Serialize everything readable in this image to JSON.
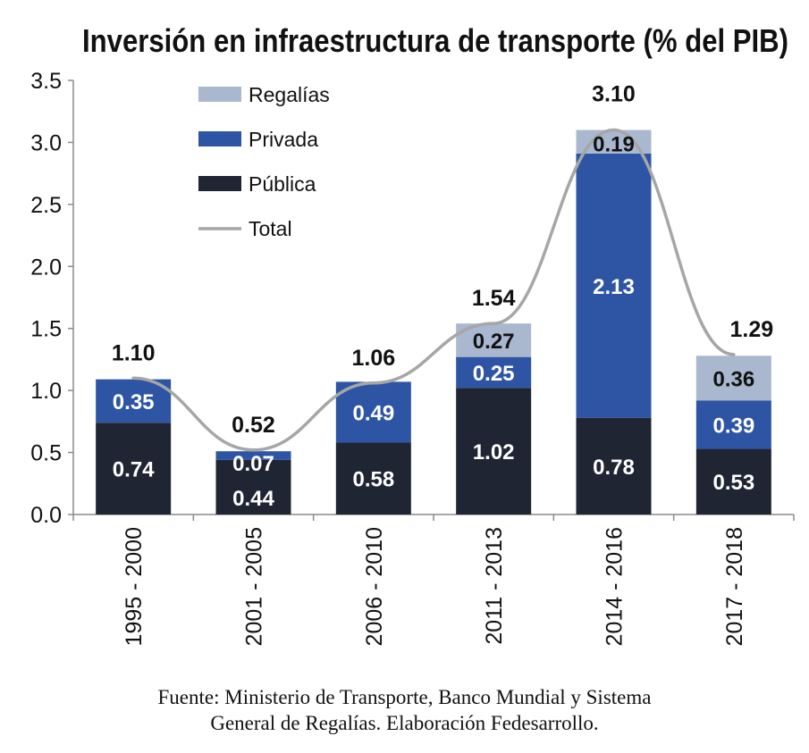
{
  "chart_data": {
    "type": "bar",
    "stacked": true,
    "title": "Inversión en infraestructura de transporte (% del PIB)",
    "categories": [
      "1995 - 2000",
      "2001 - 2005",
      "2006 - 2010",
      "2011 - 2013",
      "2014 - 2016",
      "2017 - 2018"
    ],
    "series": [
      {
        "name": "Pública",
        "values": [
          0.74,
          0.44,
          0.58,
          1.02,
          0.78,
          0.53
        ],
        "labels": [
          "0.74",
          "0.44",
          "0.58",
          "1.02",
          "0.78",
          "0.53"
        ],
        "color": "#1f2533",
        "label_color": "#ffffff"
      },
      {
        "name": "Privada",
        "values": [
          0.35,
          0.07,
          0.49,
          0.25,
          2.13,
          0.39
        ],
        "labels": [
          "0.35",
          "0.07",
          "0.49",
          "0.25",
          "2.13",
          "0.39"
        ],
        "color": "#2e55a4",
        "label_color": "#ffffff"
      },
      {
        "name": "Regalías",
        "values": [
          0,
          0,
          0,
          0.27,
          0.19,
          0.36
        ],
        "labels": [
          "",
          "",
          "",
          "0.27",
          "0.19",
          "0.36"
        ],
        "color": "#a9b8cf",
        "label_color": "#111111"
      }
    ],
    "total": {
      "name": "Total",
      "values": [
        1.1,
        0.52,
        1.06,
        1.54,
        3.1,
        1.29
      ],
      "labels": [
        "1.10",
        "0.52",
        "1.06",
        "1.54",
        "3.10",
        "1.29"
      ],
      "color": "#a6a6a6"
    },
    "y_ticks": [
      "0.0",
      "0.5",
      "1.0",
      "1.5",
      "2.0",
      "2.5",
      "3.0",
      "3.5"
    ],
    "ylim": [
      0,
      3.5
    ],
    "legend": {
      "placement": "top-left",
      "items": [
        {
          "name": "Regalías",
          "kind": "box",
          "color": "#a9b8cf"
        },
        {
          "name": "Privada",
          "kind": "box",
          "color": "#2e55a4"
        },
        {
          "name": "Pública",
          "kind": "box",
          "color": "#1f2533"
        },
        {
          "name": "Total",
          "kind": "line",
          "color": "#a6a6a6"
        }
      ]
    },
    "grid": false,
    "xlabel": "",
    "ylabel": ""
  },
  "source": {
    "line1": "Fuente: Ministerio de Transporte, Banco Mundial y Sistema",
    "line2": "General de Regalías. Elaboración Fedesarrollo."
  }
}
